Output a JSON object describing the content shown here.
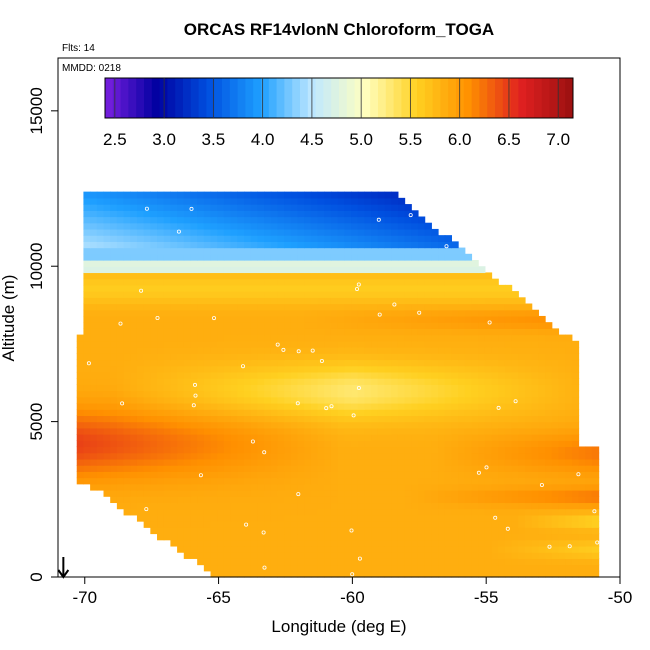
{
  "chart_data": {
    "type": "heatmap",
    "title": "ORCAS RF14vlonN Chloroform_TOGA",
    "annotations": {
      "flights": "Flts: 14",
      "date": "MMDD: 0218"
    },
    "xlabel": "Longitude (deg E)",
    "ylabel": "Altitude (m)",
    "xlim": [
      -71,
      -50
    ],
    "ylim": [
      0,
      16700
    ],
    "xticks": [
      -70,
      -65,
      -60,
      -55,
      -50
    ],
    "xtick_labels": [
      "-70",
      "-65",
      "-60",
      "-55",
      "-50"
    ],
    "yticks": [
      0,
      5000,
      10000,
      15000
    ],
    "ytick_labels": [
      "0",
      "5000",
      "10000",
      "15000"
    ],
    "colorbar": {
      "min": 2.4,
      "max": 7.15,
      "ticks": [
        2.5,
        3.0,
        3.5,
        4.0,
        4.5,
        5.0,
        5.5,
        6.0,
        6.5,
        7.0
      ],
      "tick_labels": [
        "2.5",
        "3.0",
        "3.5",
        "4.0",
        "4.5",
        "5.0",
        "5.5",
        "6.0",
        "6.5",
        "7.0"
      ],
      "colors": [
        "#7a1fe0",
        "#0000a0",
        "#0050e0",
        "#1ea0ff",
        "#bfe8ff",
        "#ffffc0",
        "#ffd020",
        "#ff9000",
        "#e02020",
        "#9a1010"
      ]
    },
    "grid_lon_range": [
      -70.3,
      -50.7
    ],
    "grid_alt_range": [
      0,
      12400
    ],
    "wind_arrow": {
      "longitude": -70.8,
      "altitude": 0,
      "direction": "south"
    }
  }
}
